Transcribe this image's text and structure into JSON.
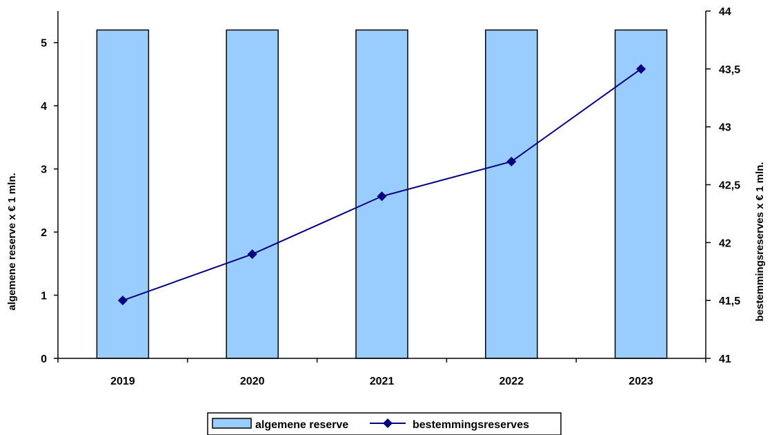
{
  "chart_data": {
    "type": "bar",
    "categories": [
      "2019",
      "2020",
      "2021",
      "2022",
      "2023"
    ],
    "series": [
      {
        "name": "algemene reserve",
        "type": "bar",
        "axis": "left",
        "values": [
          5.2,
          5.2,
          5.2,
          5.2,
          5.2
        ],
        "color": "#99CCFF",
        "stroke": "#000000"
      },
      {
        "name": "bestemmingsreserves",
        "type": "line",
        "axis": "right",
        "marker": "diamond",
        "values": [
          41.5,
          41.9,
          42.4,
          42.7,
          43.5
        ],
        "color": "#000080"
      }
    ],
    "y_left": {
      "label": "algemene reserve x € 1 mln.",
      "range": [
        0,
        5.5
      ],
      "ticks": [
        0,
        1,
        2,
        3,
        4,
        5
      ],
      "tick_labels": [
        "0",
        "1",
        "2",
        "3",
        "4",
        "5"
      ]
    },
    "y_right": {
      "label": "bestemmingsreserves x € 1 mln.",
      "range": [
        41,
        44
      ],
      "ticks": [
        41,
        41.5,
        42,
        42.5,
        43,
        43.5,
        44
      ],
      "tick_labels": [
        "41",
        "41,5",
        "42",
        "42,5",
        "43",
        "43,5",
        "44"
      ]
    },
    "grid": false,
    "legend_position": "bottom-center"
  }
}
